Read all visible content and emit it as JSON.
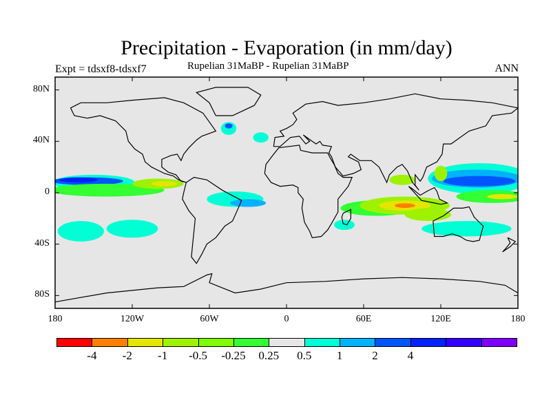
{
  "title": "Precipitation - Evaporation (in mm/day)",
  "experiment": "Expt = tdsxf8-tdsxf7",
  "subtitle": "Rupelian  31MaBP - Rupelian  31MaBP",
  "season": "ANN",
  "colors": {
    "background": "#e6e6e6",
    "coastline": "#000000",
    "red": "#ff0000",
    "orange": "#ff7f00",
    "yellow": "#e5e500",
    "yellowgreen": "#9ef200",
    "lightgreen": "#7fff00",
    "green": "#33ff33",
    "neutral": "#e6e6e6",
    "cyan": "#00ffd5",
    "lightblue": "#00b2ff",
    "blue": "#0055ff",
    "darkblue": "#0022ff",
    "indigo": "#3300ff",
    "violet": "#7f00ff"
  },
  "axes": {
    "y_ticks": [
      {
        "label": "80N",
        "lat": 80
      },
      {
        "label": "40N",
        "lat": 40
      },
      {
        "label": "0",
        "lat": 0
      },
      {
        "label": "40S",
        "lat": -40
      },
      {
        "label": "80S",
        "lat": -80
      }
    ],
    "x_ticks": [
      {
        "label": "180",
        "lon": -180
      },
      {
        "label": "120W",
        "lon": -120
      },
      {
        "label": "60W",
        "lon": -60
      },
      {
        "label": "0",
        "lon": 0
      },
      {
        "label": "60E",
        "lon": 60
      },
      {
        "label": "120E",
        "lon": 120
      },
      {
        "label": "180",
        "lon": 180
      }
    ],
    "lon_range": [
      -180,
      180
    ],
    "lat_range": [
      -90,
      90
    ]
  },
  "colorbar": {
    "colors": [
      "#ff0000",
      "#ff7f00",
      "#e5e500",
      "#9ef200",
      "#7fff00",
      "#33ff33",
      "#e6e6e6",
      "#00ffd5",
      "#00b2ff",
      "#0055ff",
      "#0022ff",
      "#3300ff",
      "#7f00ff"
    ],
    "labels": [
      "-4",
      "-2",
      "-1",
      "-0.5",
      "-0.25",
      "0.25",
      "0.5",
      "1",
      "2",
      "4"
    ]
  },
  "anomaly_fields": [
    {
      "lon": -150,
      "lat": 8,
      "rlon": 32,
      "rlat": 6,
      "color": "#00ffd5"
    },
    {
      "lon": -155,
      "lat": 9,
      "rlon": 28,
      "rlat": 3,
      "color": "#0055ff"
    },
    {
      "lon": -162,
      "lat": 10,
      "rlon": 15,
      "rlat": 2,
      "color": "#0022ff"
    },
    {
      "lon": -140,
      "lat": 2,
      "rlon": 45,
      "rlat": 5,
      "color": "#33ff33"
    },
    {
      "lon": -100,
      "lat": 7,
      "rlon": 20,
      "rlat": 4,
      "color": "#9ef200"
    },
    {
      "lon": -95,
      "lat": 7,
      "rlon": 10,
      "rlat": 2,
      "color": "#e5e500"
    },
    {
      "lon": -160,
      "lat": -30,
      "rlon": 18,
      "rlat": 8,
      "color": "#00ffd5"
    },
    {
      "lon": -120,
      "lat": -28,
      "rlon": 20,
      "rlat": 7,
      "color": "#00ffd5"
    },
    {
      "lon": -40,
      "lat": -5,
      "rlon": 22,
      "rlat": 6,
      "color": "#00ffd5"
    },
    {
      "lon": -30,
      "lat": -8,
      "rlon": 14,
      "rlat": 3,
      "color": "#00b2ff"
    },
    {
      "lon": -45,
      "lat": 50,
      "rlon": 6,
      "rlat": 5,
      "color": "#00ffd5"
    },
    {
      "lon": -45,
      "lat": 52,
      "rlon": 3,
      "rlat": 2,
      "color": "#0055ff"
    },
    {
      "lon": -20,
      "lat": 43,
      "rlon": 6,
      "rlat": 4,
      "color": "#00ffd5"
    },
    {
      "lon": 70,
      "lat": -12,
      "rlon": 28,
      "rlat": 6,
      "color": "#33ff33"
    },
    {
      "lon": 92,
      "lat": -10,
      "rlon": 35,
      "rlat": 7,
      "color": "#9ef200"
    },
    {
      "lon": 92,
      "lat": -10,
      "rlon": 20,
      "rlat": 4,
      "color": "#e5e500"
    },
    {
      "lon": 92,
      "lat": -10,
      "rlon": 8,
      "rlat": 1.8,
      "color": "#ff7f00"
    },
    {
      "lon": 110,
      "lat": -17,
      "rlon": 18,
      "rlat": 5,
      "color": "#9ef200"
    },
    {
      "lon": 150,
      "lat": 11,
      "rlon": 40,
      "rlat": 12,
      "color": "#00ffd5"
    },
    {
      "lon": 148,
      "lat": 11,
      "rlon": 35,
      "rlat": 7,
      "color": "#00b2ff"
    },
    {
      "lon": 150,
      "lat": 9,
      "rlon": 28,
      "rlat": 4,
      "color": "#0055ff"
    },
    {
      "lon": 160,
      "lat": -3,
      "rlon": 28,
      "rlat": 5,
      "color": "#33ff33"
    },
    {
      "lon": 168,
      "lat": -3,
      "rlon": 12,
      "rlat": 2,
      "color": "#e5e500"
    },
    {
      "lon": 140,
      "lat": -28,
      "rlon": 35,
      "rlat": 6,
      "color": "#00ffd5"
    },
    {
      "lon": 45,
      "lat": -25,
      "rlon": 8,
      "rlat": 4,
      "color": "#00ffd5"
    },
    {
      "lon": 90,
      "lat": 10,
      "rlon": 10,
      "rlat": 4,
      "color": "#9ef200"
    },
    {
      "lon": 120,
      "lat": 15,
      "rlon": 5,
      "rlat": 6,
      "color": "#9ef200"
    }
  ]
}
